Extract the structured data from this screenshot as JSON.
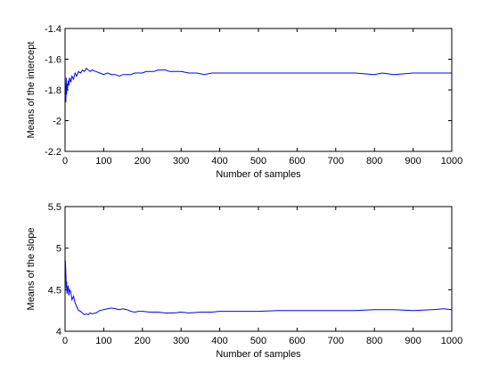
{
  "chart_data": [
    {
      "type": "line",
      "xlabel": "Number of samples",
      "ylabel": "Means of the intercept",
      "xlim": [
        0,
        1000
      ],
      "ylim": [
        -2.2,
        -1.4
      ],
      "xticks": [
        0,
        100,
        200,
        300,
        400,
        500,
        600,
        700,
        800,
        900,
        1000
      ],
      "yticks": [
        -2.2,
        -2,
        -1.8,
        -1.6,
        -1.4
      ],
      "xtick_labels": [
        "0",
        "100",
        "200",
        "300",
        "400",
        "500",
        "600",
        "700",
        "800",
        "900",
        "1000"
      ],
      "ytick_labels": [
        "-2.2",
        "-2",
        "-1.8",
        "-1.6",
        "-1.4"
      ],
      "grid": false,
      "line_color": "#0000ff",
      "series": [
        {
          "x": [
            1,
            2,
            3,
            4,
            5,
            6,
            8,
            10,
            12,
            15,
            18,
            22,
            26,
            30,
            35,
            40,
            45,
            50,
            55,
            60,
            65,
            70,
            80,
            90,
            100,
            110,
            120,
            130,
            140,
            150,
            160,
            170,
            180,
            190,
            200,
            210,
            220,
            230,
            240,
            250,
            260,
            270,
            280,
            290,
            300,
            320,
            340,
            360,
            380,
            400,
            420,
            450,
            480,
            500,
            550,
            600,
            650,
            700,
            750,
            800,
            820,
            850,
            900,
            950,
            1000
          ],
          "y": [
            -1.78,
            -1.88,
            -1.72,
            -1.83,
            -1.76,
            -1.8,
            -1.74,
            -1.77,
            -1.72,
            -1.75,
            -1.71,
            -1.73,
            -1.69,
            -1.71,
            -1.68,
            -1.69,
            -1.67,
            -1.68,
            -1.66,
            -1.67,
            -1.68,
            -1.67,
            -1.68,
            -1.69,
            -1.7,
            -1.69,
            -1.7,
            -1.7,
            -1.71,
            -1.7,
            -1.7,
            -1.7,
            -1.69,
            -1.69,
            -1.69,
            -1.68,
            -1.68,
            -1.68,
            -1.67,
            -1.67,
            -1.67,
            -1.68,
            -1.68,
            -1.68,
            -1.68,
            -1.69,
            -1.69,
            -1.7,
            -1.69,
            -1.69,
            -1.69,
            -1.69,
            -1.69,
            -1.69,
            -1.69,
            -1.69,
            -1.69,
            -1.69,
            -1.69,
            -1.7,
            -1.69,
            -1.7,
            -1.69,
            -1.69,
            -1.69
          ]
        }
      ]
    },
    {
      "type": "line",
      "xlabel": "Number of samples",
      "ylabel": "Means of the slope",
      "xlim": [
        0,
        1000
      ],
      "ylim": [
        4,
        5.5
      ],
      "xticks": [
        0,
        100,
        200,
        300,
        400,
        500,
        600,
        700,
        800,
        900,
        1000
      ],
      "yticks": [
        4,
        4.5,
        5,
        5.5
      ],
      "xtick_labels": [
        "0",
        "100",
        "200",
        "300",
        "400",
        "500",
        "600",
        "700",
        "800",
        "900",
        "1000"
      ],
      "ytick_labels": [
        "4",
        "4.5",
        "5",
        "5.5"
      ],
      "grid": false,
      "line_color": "#0000ff",
      "series": [
        {
          "x": [
            1,
            2,
            3,
            4,
            5,
            6,
            8,
            10,
            12,
            15,
            18,
            22,
            26,
            30,
            35,
            40,
            45,
            50,
            55,
            60,
            65,
            70,
            80,
            90,
            100,
            110,
            120,
            130,
            140,
            150,
            160,
            170,
            180,
            190,
            200,
            220,
            240,
            260,
            280,
            300,
            320,
            350,
            380,
            400,
            450,
            500,
            550,
            600,
            650,
            700,
            750,
            800,
            850,
            900,
            950,
            980,
            1000
          ],
          "y": [
            4.85,
            4.7,
            4.52,
            4.6,
            4.45,
            4.5,
            4.55,
            4.43,
            4.5,
            4.47,
            4.38,
            4.42,
            4.34,
            4.3,
            4.25,
            4.24,
            4.22,
            4.2,
            4.21,
            4.2,
            4.22,
            4.21,
            4.22,
            4.25,
            4.26,
            4.27,
            4.28,
            4.27,
            4.26,
            4.27,
            4.26,
            4.24,
            4.23,
            4.24,
            4.24,
            4.23,
            4.23,
            4.22,
            4.22,
            4.23,
            4.22,
            4.23,
            4.23,
            4.24,
            4.24,
            4.24,
            4.25,
            4.25,
            4.25,
            4.25,
            4.25,
            4.26,
            4.26,
            4.25,
            4.26,
            4.27,
            4.26
          ]
        }
      ]
    }
  ]
}
